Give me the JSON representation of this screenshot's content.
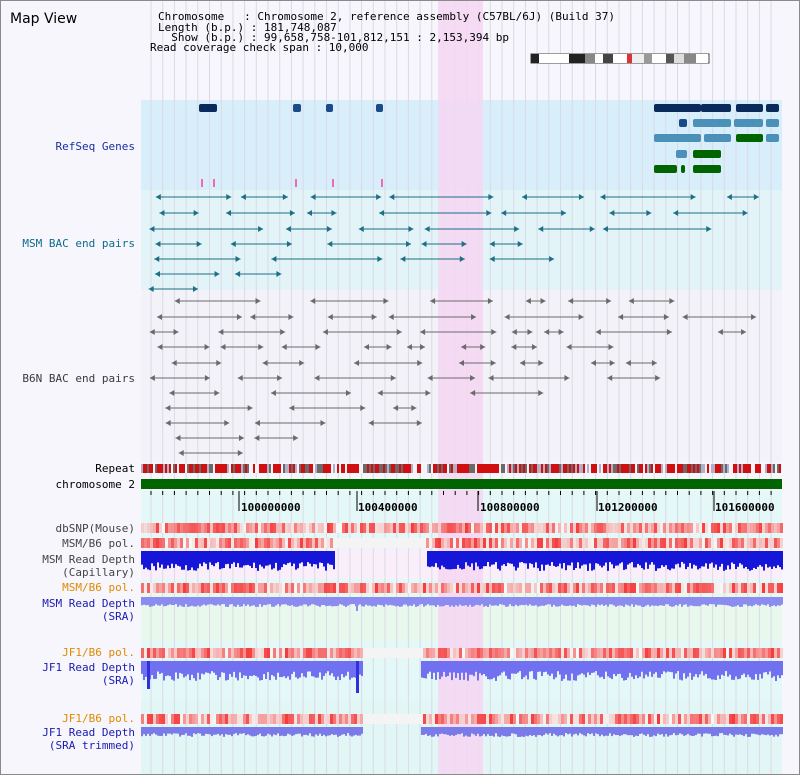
{
  "view_title": "Map View",
  "info": {
    "chromosome_line": "Chromosome   : Chromosome 2, reference assembly (C57BL/6J) (Build 37)",
    "length_line": "Length (b.p.) : 181,748,087",
    "show_line": "  Show (b.p.) : 99,658,758-101,812,151 : 2,153,394 bp",
    "span_line": "Read coverage check span : 10,000"
  },
  "tracks": {
    "refseq": "RefSeq Genes",
    "msm_bac": "MSM BAC end pairs",
    "b6n_bac": "B6N BAC end pairs",
    "repeat": "Repeat",
    "chromosome": "chromosome 2",
    "dbsnp": "dbSNP(Mouse)",
    "msm_b6_pol_1": "MSM/B6 pol.",
    "msm_read_depth_cap": "MSM Read Depth\n(Capillary)",
    "msm_b6_pol_2": "MSM/B6 pol.",
    "msm_read_depth_sra": "MSM Read Depth\n(SRA)",
    "jf1_b6_pol_1": "JF1/B6 pol.",
    "jf1_read_depth_sra": "JF1 Read Depth\n(SRA)",
    "jf1_b6_pol_2": "JF1/B6 pol.",
    "jf1_read_depth_trim": "JF1 Read Depth\n(SRA trimmed)"
  },
  "axis_ticks": [
    "100000000",
    "100400000",
    "100800000",
    "101200000",
    "101600000"
  ],
  "colors": {
    "refseq_label": "#1a2fa0",
    "msm_label": "#0e6a8c",
    "b6n_label": "#3a3a3a",
    "orange_label": "#e08a00",
    "blue_label": "#1a1ab0",
    "highlight": "#f6d6f2",
    "chromosome_bar": "#006400"
  }
}
